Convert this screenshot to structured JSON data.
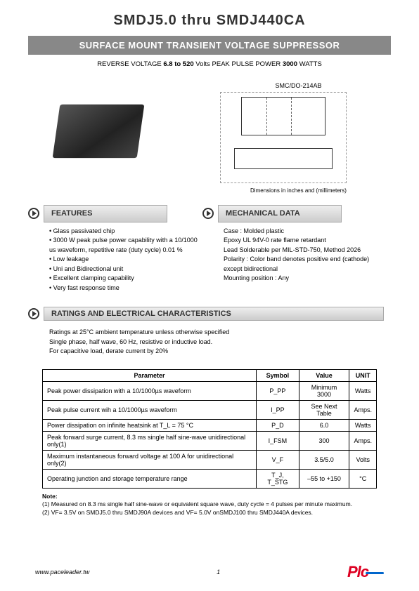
{
  "title": "SMDJ5.0  thru  SMDJ440CA",
  "subtitle": "SURFACE MOUNT TRANSIENT VOLTAGE SUPPRESSOR",
  "specline": {
    "prefix": "REVERSE VOLTAGE ",
    "voltage": "6.8 to 520",
    "voltunit": " Volts    PEAK PULSE POWER  ",
    "power": "3000",
    "powerunit": " WATTS"
  },
  "package_label": "SMC/DO-214AB",
  "dim_note": "Dimensions in inches and (millimeters)",
  "sections": {
    "features": "FEATURES",
    "mechdata": "MECHANICAL DATA",
    "ratings": "RATINGS AND ELECTRICAL CHARACTERISTICS"
  },
  "features": [
    "Glass passivated chip",
    "3000 W peak pulse power capability with a 10/1000 us  waveform, repetitive rate (duty cycle) 0.01 %",
    "Low leakage",
    "Uni and Bidirectional unit",
    "Excellent clamping capability",
    "Very fast response time"
  ],
  "mechanical": [
    "Case :  Molded plastic",
    "Epoxy   UL 94V-0 rate flame retardant",
    "Lead   Solderable per MIL-STD-750, Method 2026",
    "Polarity : Color band denotes  positive end (cathode) except bidirectional",
    "Mounting position : Any"
  ],
  "ratings_intro": [
    "Ratings at 25°C ambient temperature unless otherwise specified",
    "Single phase, half wave, 60 Hz, resistive or inductive load.",
    "For capacitive load, derate current by 20%"
  ],
  "table": {
    "headers": [
      "Parameter",
      "Symbol",
      "Value",
      "UNIT"
    ],
    "rows": [
      [
        "Peak power dissipation with a 10/1000µs waveform",
        "P_PP",
        "Minimum 3000",
        "Watts"
      ],
      [
        "Peak pulse current wih a 10/1000µs waveform",
        "I_PP",
        "See Next Table",
        "Amps."
      ],
      [
        "Power dissipation on infinite heatsink at T_L = 75 °C",
        "P_D",
        "6.0",
        "Watts"
      ],
      [
        "Peak forward surge current, 8.3 ms single half sine-wave unidirectional only(1)",
        "I_FSM",
        "300",
        "Amps."
      ],
      [
        "Maximum instantaneous forward voltage at 100 A for unidirectional only(2)",
        "V_F",
        "3.5/5.0",
        "Volts"
      ],
      [
        "Operating junction and storage temperature range",
        "T_J, T_STG",
        "–55 to +150",
        "°C"
      ]
    ]
  },
  "notes": {
    "title": "Note:",
    "items": [
      "(1) Measured on 8.3 ms single half sine-wave or equivalent square wave, duty cycle = 4 pulses per minute maximum.",
      "(2) VF= 3.5V on SMDJ5.0 thru SMDJ90A devices and VF= 5.0V onSMDJ100 thru SMDJ440A devices."
    ]
  },
  "footer": {
    "url": "www.paceleader.tw",
    "page": "1",
    "logo": "Plc"
  }
}
